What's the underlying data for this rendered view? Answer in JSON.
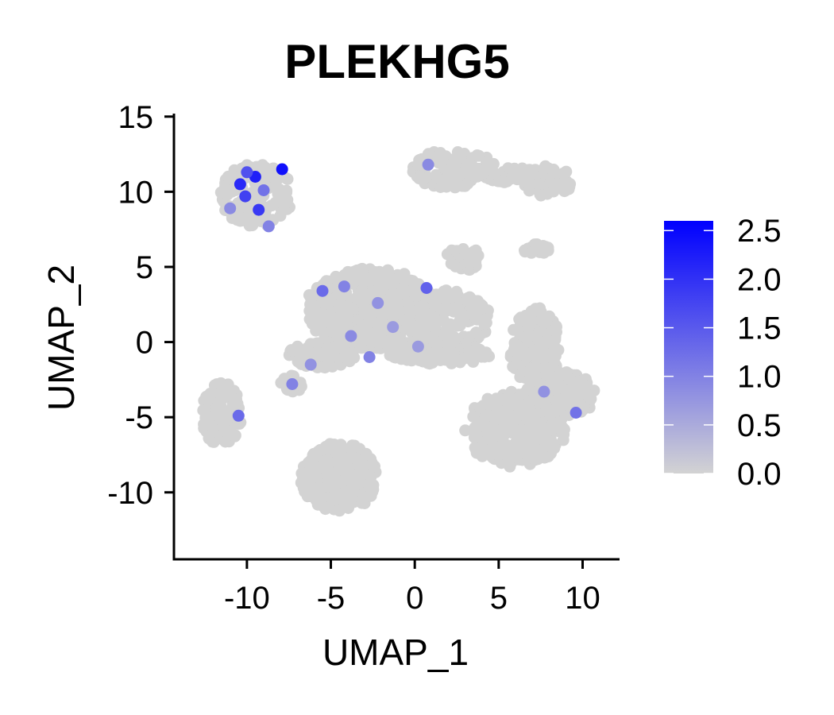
{
  "chart_data": {
    "type": "scatter",
    "title": "PLEKHG5",
    "xlabel": "UMAP_1",
    "ylabel": "UMAP_2",
    "xlim": [
      -14.3,
      12.2
    ],
    "ylim": [
      -14.4,
      15.2
    ],
    "x_ticks": [
      -10,
      -5,
      0,
      5,
      10
    ],
    "x_tick_labels": [
      "-10",
      "-5",
      "0",
      "5",
      "10"
    ],
    "y_ticks": [
      -10,
      -5,
      0,
      5,
      10,
      15
    ],
    "y_tick_labels": [
      "-10",
      "-5",
      "0",
      "5",
      "10",
      "15"
    ],
    "grid": false,
    "legend_position": "right",
    "colorbar": {
      "min": 0.0,
      "max": 2.6,
      "ticks": [
        0.0,
        0.5,
        1.0,
        1.5,
        2.0,
        2.5
      ],
      "tick_labels": [
        "0.0",
        "0.5",
        "1.0",
        "1.5",
        "2.0",
        "2.5"
      ],
      "low_color": "#d3d3d3",
      "high_color": "#0000ff"
    },
    "clusters": [
      {
        "name": "top-left",
        "cx": -9.4,
        "cy": 9.8,
        "rx": 2.2,
        "ry": 2.1,
        "n": 140
      },
      {
        "name": "top-right-main",
        "cx": 2.3,
        "cy": 11.5,
        "rx": 2.5,
        "ry": 1.3,
        "n": 120
      },
      {
        "name": "top-right-arm",
        "cx": 6.0,
        "cy": 11.1,
        "rx": 2.2,
        "ry": 0.5,
        "n": 60
      },
      {
        "name": "top-right-tip",
        "cx": 8.0,
        "cy": 10.7,
        "rx": 1.5,
        "ry": 1.1,
        "n": 50
      },
      {
        "name": "center-core",
        "cx": -2.6,
        "cy": 2.2,
        "rx": 4.0,
        "ry": 2.7,
        "n": 500
      },
      {
        "name": "center-right",
        "cx": 2.0,
        "cy": 1.5,
        "rx": 2.5,
        "ry": 2.0,
        "n": 180
      },
      {
        "name": "center-left-tail",
        "cx": -5.5,
        "cy": -0.8,
        "rx": 2.0,
        "ry": 0.9,
        "n": 90
      },
      {
        "name": "center-bottom-tail",
        "cx": 1.5,
        "cy": -0.8,
        "rx": 3.0,
        "ry": 0.7,
        "n": 90
      },
      {
        "name": "upper-middle-blob",
        "cx": 2.9,
        "cy": 5.6,
        "rx": 1.0,
        "ry": 0.9,
        "n": 50
      },
      {
        "name": "thin-stripe",
        "cx": 7.2,
        "cy": 6.2,
        "rx": 0.8,
        "ry": 0.35,
        "n": 20
      },
      {
        "name": "small-left",
        "cx": -7.4,
        "cy": -2.8,
        "rx": 0.7,
        "ry": 0.6,
        "n": 20
      },
      {
        "name": "left-bottom",
        "cx": -11.5,
        "cy": -4.8,
        "rx": 1.2,
        "ry": 2.1,
        "n": 130
      },
      {
        "name": "bottom-center",
        "cx": -4.5,
        "cy": -9.0,
        "rx": 2.3,
        "ry": 2.3,
        "n": 250
      },
      {
        "name": "right-upper",
        "cx": 7.2,
        "cy": -0.5,
        "rx": 1.5,
        "ry": 2.8,
        "n": 170
      },
      {
        "name": "right-lower",
        "cx": 6.0,
        "cy": -5.8,
        "rx": 3.0,
        "ry": 2.5,
        "n": 300
      },
      {
        "name": "right-side",
        "cx": 9.0,
        "cy": -3.5,
        "rx": 1.8,
        "ry": 1.5,
        "n": 100
      }
    ],
    "expressing_cells": [
      {
        "x": -7.9,
        "y": 11.5,
        "value": 2.4
      },
      {
        "x": -9.5,
        "y": 11.0,
        "value": 2.2
      },
      {
        "x": -10.4,
        "y": 10.5,
        "value": 2.1
      },
      {
        "x": -10.1,
        "y": 9.7,
        "value": 1.8
      },
      {
        "x": -9.3,
        "y": 8.8,
        "value": 1.9
      },
      {
        "x": -10.0,
        "y": 11.3,
        "value": 1.6
      },
      {
        "x": -9.0,
        "y": 10.1,
        "value": 1.2
      },
      {
        "x": -8.7,
        "y": 7.7,
        "value": 1.0
      },
      {
        "x": -11.0,
        "y": 8.9,
        "value": 0.9
      },
      {
        "x": 0.7,
        "y": 3.6,
        "value": 1.4
      },
      {
        "x": -5.5,
        "y": 3.4,
        "value": 1.3
      },
      {
        "x": -4.2,
        "y": 3.7,
        "value": 1.0
      },
      {
        "x": -3.8,
        "y": 0.4,
        "value": 0.9
      },
      {
        "x": -2.7,
        "y": -1.0,
        "value": 1.0
      },
      {
        "x": -1.3,
        "y": 1.0,
        "value": 0.7
      },
      {
        "x": 9.6,
        "y": -4.7,
        "value": 1.2
      },
      {
        "x": 7.7,
        "y": -3.3,
        "value": 0.8
      },
      {
        "x": -10.5,
        "y": -4.9,
        "value": 1.3
      },
      {
        "x": -7.3,
        "y": -2.8,
        "value": 1.0
      },
      {
        "x": -6.2,
        "y": -1.5,
        "value": 0.8
      },
      {
        "x": 0.8,
        "y": 11.8,
        "value": 0.9
      },
      {
        "x": -2.2,
        "y": 2.6,
        "value": 0.8
      },
      {
        "x": 0.2,
        "y": -0.3,
        "value": 0.7
      }
    ]
  }
}
